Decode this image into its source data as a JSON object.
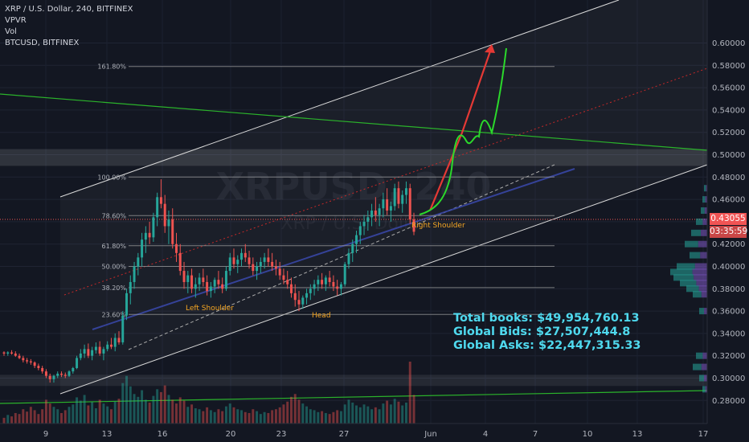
{
  "legend": {
    "symbol_line": "XRP / U.S. Dollar, 240, BITFINEX",
    "indicator_1": "VPVR",
    "indicator_2": "Vol",
    "compare_symbol": "BTCUSD, BITFINEX"
  },
  "watermark": "XRPUSD, 240",
  "watermark_sub": "XRP / U.S. Dollar",
  "current_price": "0.43055",
  "countdown": "03:35:59",
  "books": {
    "total": "Total books: $49,954,760.13",
    "bids": "Global Bids: $27,507,444.8",
    "asks": "Global Asks: $22,447,315.33"
  },
  "colors": {
    "background": "#131722",
    "up_candle": "#26a69a",
    "down_candle": "#ef5350",
    "projection_red": "#e53935",
    "projection_green": "#2bd92b",
    "annotation": "#f5a623",
    "channel": "#d9d9d9",
    "books_text": "#4fd9ee"
  },
  "chart_data": {
    "type": "candlestick",
    "y_axis": {
      "range": [
        0.265,
        0.62
      ],
      "ticks": [
        "0.28000",
        "0.30000",
        "0.32000",
        "0.34000",
        "0.36000",
        "0.38000",
        "0.40000",
        "0.42000",
        "0.44000",
        "0.46000",
        "0.48000",
        "0.50000",
        "0.52000",
        "0.54000",
        "0.56000",
        "0.58000",
        "0.60000"
      ]
    },
    "x_axis": {
      "ticks": [
        "9",
        "13",
        "16",
        "20",
        "23",
        "27",
        "Jun",
        "4",
        "7",
        "10",
        "13",
        "17"
      ]
    },
    "fibonacci": [
      {
        "label": "161.80%",
        "value": 0.579
      },
      {
        "label": "100.00%",
        "value": 0.48
      },
      {
        "label": "78.60%",
        "value": 0.4455
      },
      {
        "label": "61.80%",
        "value": 0.4185
      },
      {
        "label": "50.00%",
        "value": 0.4
      },
      {
        "label": "38.20%",
        "value": 0.381
      },
      {
        "label": "23.60%",
        "value": 0.357
      }
    ],
    "annotations": [
      "Left Shoulder",
      "Head",
      "Right Shoulder"
    ],
    "last_price": 0.43055,
    "candles_ohlc": [
      [
        0.323,
        0.324,
        0.32,
        0.322
      ],
      [
        0.322,
        0.324,
        0.32,
        0.323
      ],
      [
        0.323,
        0.325,
        0.321,
        0.322
      ],
      [
        0.322,
        0.324,
        0.319,
        0.32
      ],
      [
        0.32,
        0.322,
        0.317,
        0.318
      ],
      [
        0.318,
        0.32,
        0.314,
        0.316
      ],
      [
        0.316,
        0.318,
        0.313,
        0.315
      ],
      [
        0.315,
        0.317,
        0.312,
        0.314
      ],
      [
        0.314,
        0.315,
        0.309,
        0.311
      ],
      [
        0.311,
        0.313,
        0.307,
        0.309
      ],
      [
        0.309,
        0.311,
        0.304,
        0.306
      ],
      [
        0.306,
        0.308,
        0.3,
        0.302
      ],
      [
        0.302,
        0.304,
        0.296,
        0.299
      ],
      [
        0.299,
        0.303,
        0.296,
        0.302
      ],
      [
        0.302,
        0.306,
        0.3,
        0.304
      ],
      [
        0.304,
        0.306,
        0.301,
        0.303
      ],
      [
        0.303,
        0.305,
        0.3,
        0.302
      ],
      [
        0.302,
        0.307,
        0.301,
        0.306
      ],
      [
        0.306,
        0.31,
        0.304,
        0.309
      ],
      [
        0.309,
        0.32,
        0.308,
        0.318
      ],
      [
        0.318,
        0.326,
        0.316,
        0.322
      ],
      [
        0.322,
        0.33,
        0.318,
        0.326
      ],
      [
        0.326,
        0.331,
        0.318,
        0.32
      ],
      [
        0.32,
        0.328,
        0.316,
        0.325
      ],
      [
        0.325,
        0.332,
        0.322,
        0.328
      ],
      [
        0.328,
        0.333,
        0.32,
        0.322
      ],
      [
        0.322,
        0.328,
        0.316,
        0.326
      ],
      [
        0.326,
        0.333,
        0.324,
        0.33
      ],
      [
        0.33,
        0.336,
        0.326,
        0.328
      ],
      [
        0.328,
        0.34,
        0.324,
        0.336
      ],
      [
        0.336,
        0.342,
        0.33,
        0.332
      ],
      [
        0.332,
        0.36,
        0.33,
        0.356
      ],
      [
        0.356,
        0.38,
        0.352,
        0.376
      ],
      [
        0.376,
        0.392,
        0.366,
        0.386
      ],
      [
        0.386,
        0.404,
        0.38,
        0.4
      ],
      [
        0.4,
        0.412,
        0.392,
        0.408
      ],
      [
        0.408,
        0.43,
        0.4,
        0.424
      ],
      [
        0.424,
        0.436,
        0.412,
        0.43
      ],
      [
        0.43,
        0.44,
        0.42,
        0.426
      ],
      [
        0.426,
        0.448,
        0.422,
        0.444
      ],
      [
        0.444,
        0.466,
        0.436,
        0.462
      ],
      [
        0.462,
        0.478,
        0.452,
        0.456
      ],
      [
        0.456,
        0.464,
        0.43,
        0.436
      ],
      [
        0.436,
        0.45,
        0.42,
        0.442
      ],
      [
        0.442,
        0.452,
        0.416,
        0.42
      ],
      [
        0.42,
        0.43,
        0.404,
        0.412
      ],
      [
        0.412,
        0.42,
        0.392,
        0.396
      ],
      [
        0.396,
        0.404,
        0.38,
        0.386
      ],
      [
        0.386,
        0.396,
        0.376,
        0.392
      ],
      [
        0.392,
        0.398,
        0.376,
        0.38
      ],
      [
        0.38,
        0.39,
        0.372,
        0.384
      ],
      [
        0.384,
        0.394,
        0.378,
        0.39
      ],
      [
        0.39,
        0.398,
        0.382,
        0.386
      ],
      [
        0.386,
        0.392,
        0.374,
        0.378
      ],
      [
        0.378,
        0.386,
        0.372,
        0.382
      ],
      [
        0.382,
        0.39,
        0.376,
        0.388
      ],
      [
        0.388,
        0.396,
        0.38,
        0.384
      ],
      [
        0.384,
        0.39,
        0.376,
        0.38
      ],
      [
        0.38,
        0.4,
        0.378,
        0.396
      ],
      [
        0.396,
        0.412,
        0.392,
        0.408
      ],
      [
        0.408,
        0.416,
        0.398,
        0.402
      ],
      [
        0.402,
        0.41,
        0.394,
        0.406
      ],
      [
        0.406,
        0.416,
        0.4,
        0.412
      ],
      [
        0.412,
        0.42,
        0.404,
        0.408
      ],
      [
        0.408,
        0.414,
        0.398,
        0.402
      ],
      [
        0.402,
        0.408,
        0.392,
        0.396
      ],
      [
        0.396,
        0.404,
        0.388,
        0.4
      ],
      [
        0.4,
        0.408,
        0.394,
        0.404
      ],
      [
        0.404,
        0.412,
        0.398,
        0.408
      ],
      [
        0.408,
        0.416,
        0.4,
        0.404
      ],
      [
        0.404,
        0.412,
        0.396,
        0.4
      ],
      [
        0.4,
        0.406,
        0.392,
        0.398
      ],
      [
        0.398,
        0.404,
        0.388,
        0.392
      ],
      [
        0.392,
        0.398,
        0.384,
        0.388
      ],
      [
        0.388,
        0.396,
        0.38,
        0.384
      ],
      [
        0.384,
        0.39,
        0.372,
        0.376
      ],
      [
        0.376,
        0.384,
        0.364,
        0.37
      ],
      [
        0.37,
        0.378,
        0.36,
        0.366
      ],
      [
        0.366,
        0.374,
        0.362,
        0.372
      ],
      [
        0.372,
        0.38,
        0.366,
        0.376
      ],
      [
        0.376,
        0.384,
        0.37,
        0.38
      ],
      [
        0.38,
        0.388,
        0.374,
        0.384
      ],
      [
        0.384,
        0.392,
        0.378,
        0.388
      ],
      [
        0.388,
        0.394,
        0.38,
        0.384
      ],
      [
        0.384,
        0.392,
        0.378,
        0.39
      ],
      [
        0.39,
        0.396,
        0.382,
        0.386
      ],
      [
        0.386,
        0.392,
        0.378,
        0.382
      ],
      [
        0.382,
        0.388,
        0.374,
        0.38
      ],
      [
        0.38,
        0.386,
        0.374,
        0.384
      ],
      [
        0.384,
        0.404,
        0.382,
        0.402
      ],
      [
        0.402,
        0.416,
        0.398,
        0.412
      ],
      [
        0.412,
        0.424,
        0.404,
        0.42
      ],
      [
        0.42,
        0.432,
        0.412,
        0.428
      ],
      [
        0.428,
        0.44,
        0.42,
        0.436
      ],
      [
        0.436,
        0.446,
        0.428,
        0.44
      ],
      [
        0.44,
        0.45,
        0.432,
        0.444
      ],
      [
        0.444,
        0.456,
        0.436,
        0.45
      ],
      [
        0.45,
        0.462,
        0.44,
        0.446
      ],
      [
        0.446,
        0.456,
        0.436,
        0.452
      ],
      [
        0.452,
        0.466,
        0.444,
        0.46
      ],
      [
        0.46,
        0.47,
        0.446,
        0.45
      ],
      [
        0.45,
        0.458,
        0.44,
        0.454
      ],
      [
        0.454,
        0.474,
        0.45,
        0.47
      ],
      [
        0.47,
        0.476,
        0.452,
        0.456
      ],
      [
        0.456,
        0.468,
        0.448,
        0.464
      ],
      [
        0.464,
        0.476,
        0.456,
        0.47
      ],
      [
        0.47,
        0.474,
        0.438,
        0.442
      ],
      [
        0.442,
        0.448,
        0.428,
        0.431
      ]
    ],
    "volume_relative": [
      0.12,
      0.18,
      0.15,
      0.22,
      0.2,
      0.3,
      0.25,
      0.35,
      0.28,
      0.2,
      0.3,
      0.5,
      0.42,
      0.35,
      0.3,
      0.22,
      0.28,
      0.35,
      0.4,
      0.55,
      0.48,
      0.6,
      0.38,
      0.45,
      0.32,
      0.5,
      0.42,
      0.36,
      0.3,
      0.46,
      0.52,
      0.85,
      1.0,
      0.78,
      0.62,
      0.56,
      0.7,
      0.5,
      0.44,
      0.58,
      0.72,
      0.66,
      0.8,
      0.6,
      0.5,
      0.42,
      0.55,
      0.48,
      0.35,
      0.4,
      0.32,
      0.3,
      0.26,
      0.34,
      0.28,
      0.24,
      0.3,
      0.26,
      0.36,
      0.42,
      0.34,
      0.3,
      0.28,
      0.24,
      0.22,
      0.3,
      0.26,
      0.2,
      0.24,
      0.22,
      0.28,
      0.3,
      0.34,
      0.4,
      0.46,
      0.56,
      0.62,
      0.5,
      0.42,
      0.36,
      0.3,
      0.28,
      0.24,
      0.26,
      0.22,
      0.2,
      0.24,
      0.28,
      0.26,
      0.4,
      0.5,
      0.44,
      0.38,
      0.34,
      0.4,
      0.36,
      0.3,
      0.34,
      0.3,
      0.42,
      0.48,
      0.4,
      0.52,
      0.46,
      0.38,
      0.44,
      1.3,
      0.6
    ]
  }
}
